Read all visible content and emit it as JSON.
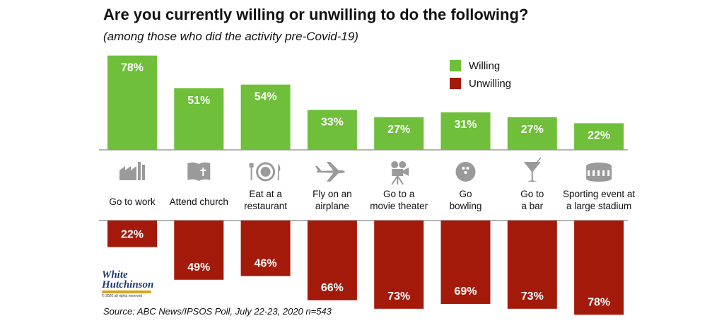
{
  "header": {
    "title": "Are you currently willing or unwilling to do the following?",
    "subtitle": "(among those who did the activity pre-Covid-19)"
  },
  "footer": {
    "source": "Source: ABC News/IPSOS Poll, July 22-23, 2020 n=543"
  },
  "logo": {
    "line1": "White",
    "line2": "Hutchinson",
    "copyright": "© 2020 all rights reserved"
  },
  "colors": {
    "willing": "#6fbf3a",
    "unwilling": "#a31a0b",
    "icon": "#9a9a9a"
  },
  "chart_data": {
    "type": "bar",
    "legend_position": "top-right",
    "ylim": [
      0,
      100
    ],
    "categories": [
      {
        "label_lines": [
          "Go to work"
        ],
        "icon": "factory-icon"
      },
      {
        "label_lines": [
          "Attend church"
        ],
        "icon": "bible-icon"
      },
      {
        "label_lines": [
          "Eat at a",
          "restaurant"
        ],
        "icon": "plate-icon"
      },
      {
        "label_lines": [
          "Fly on an",
          "airplane"
        ],
        "icon": "airplane-icon"
      },
      {
        "label_lines": [
          "Go to a",
          "movie theater"
        ],
        "icon": "movie-camera-icon"
      },
      {
        "label_lines": [
          "Go",
          "bowling"
        ],
        "icon": "bowling-ball-icon"
      },
      {
        "label_lines": [
          "Go to",
          "a bar"
        ],
        "icon": "cocktail-icon"
      },
      {
        "label_lines": [
          "Sporting event at",
          "a large stadium"
        ],
        "icon": "stadium-icon"
      }
    ],
    "series": [
      {
        "name": "Willing",
        "values": [
          78,
          51,
          54,
          33,
          27,
          31,
          27,
          22
        ],
        "labels": [
          "78%",
          "51%",
          "54%",
          "33%",
          "27%",
          "31%",
          "27%",
          "22%"
        ]
      },
      {
        "name": "Unwilling",
        "values": [
          22,
          49,
          46,
          66,
          73,
          69,
          73,
          78
        ],
        "labels": [
          "22%",
          "49%",
          "46%",
          "66%",
          "73%",
          "69%",
          "73%",
          "78%"
        ]
      }
    ]
  }
}
